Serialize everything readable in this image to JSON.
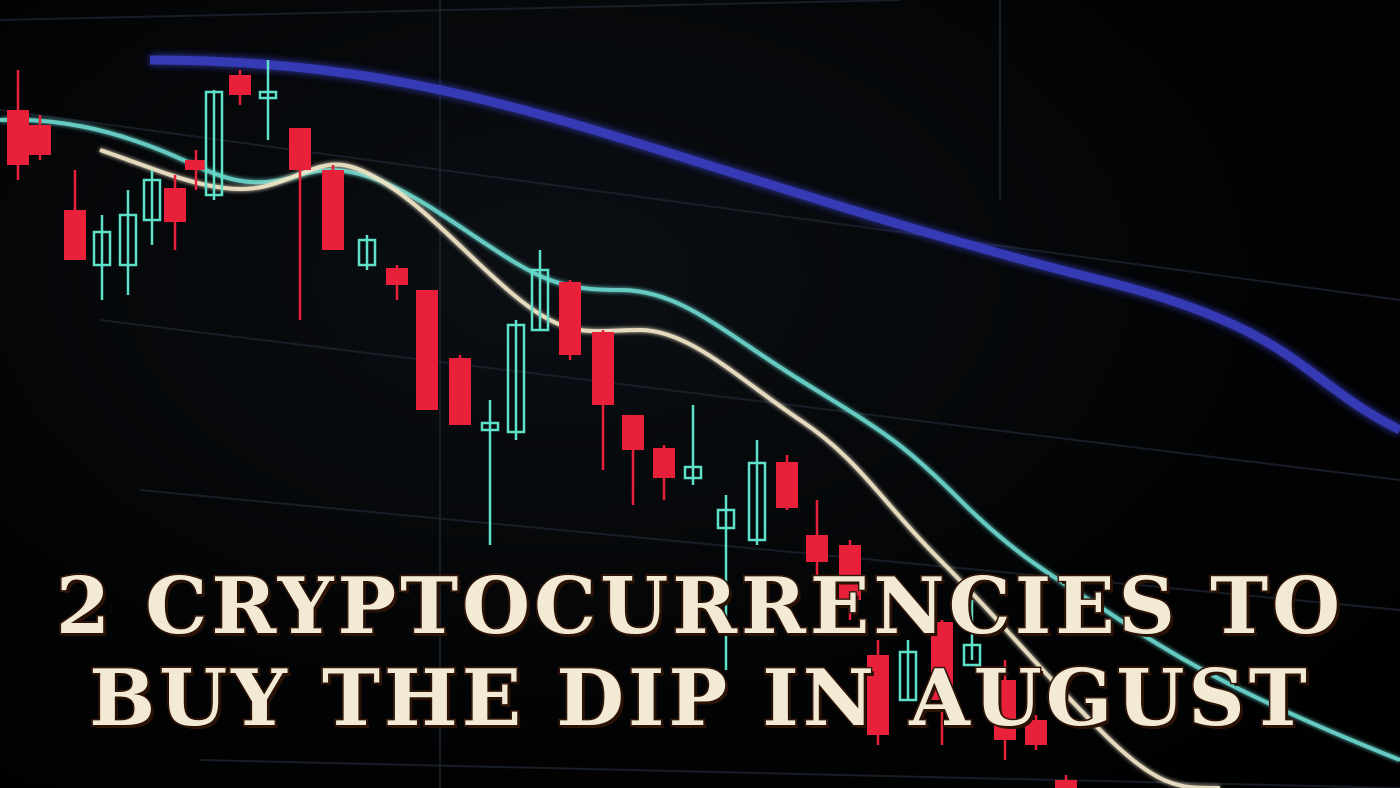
{
  "headline": {
    "line1": "2 CRYPTOCURRENCIES TO",
    "line2": "BUY THE DIP IN AUGUST"
  },
  "colors": {
    "bearish": "#e8203a",
    "bullish": "#5fe0c8",
    "ma_slow": "#3a3fc8",
    "ma_mid": "#6fe0d6",
    "ma_fast": "#f2e6c8",
    "text_fill": "#f3ead6",
    "text_stroke": "#5a2a12"
  }
}
